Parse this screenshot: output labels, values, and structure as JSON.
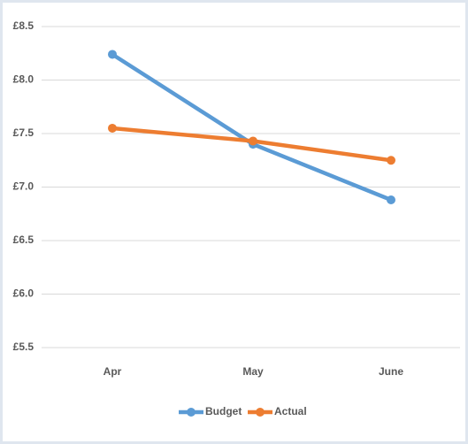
{
  "chart_data": {
    "type": "line",
    "categories": [
      "Apr",
      "May",
      "June"
    ],
    "series": [
      {
        "name": "Budget",
        "color": "#5b9bd5",
        "values": [
          8.24,
          7.4,
          6.88
        ]
      },
      {
        "name": "Actual",
        "color": "#ed7d31",
        "values": [
          7.55,
          7.43,
          7.25
        ]
      }
    ],
    "ylim": [
      5.5,
      8.5
    ],
    "yticks": [
      {
        "value": 5.5,
        "label": "£5.5"
      },
      {
        "value": 6.0,
        "label": "£6.0"
      },
      {
        "value": 6.5,
        "label": "£6.5"
      },
      {
        "value": 7.0,
        "label": "£7.0"
      },
      {
        "value": 7.5,
        "label": "£7.5"
      },
      {
        "value": 8.0,
        "label": "£8.0"
      },
      {
        "value": 8.5,
        "label": "£8.5"
      }
    ],
    "grid": true,
    "legend": "bottom"
  }
}
